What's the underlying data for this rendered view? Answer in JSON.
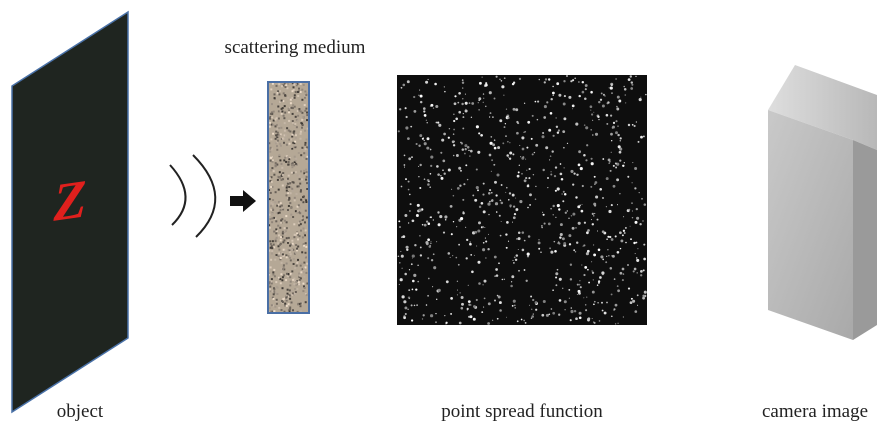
{
  "labels": {
    "medium": "scattering medium",
    "object": "object",
    "psf": "point spread function",
    "camera": "camera image"
  },
  "object_letter": "Z"
}
